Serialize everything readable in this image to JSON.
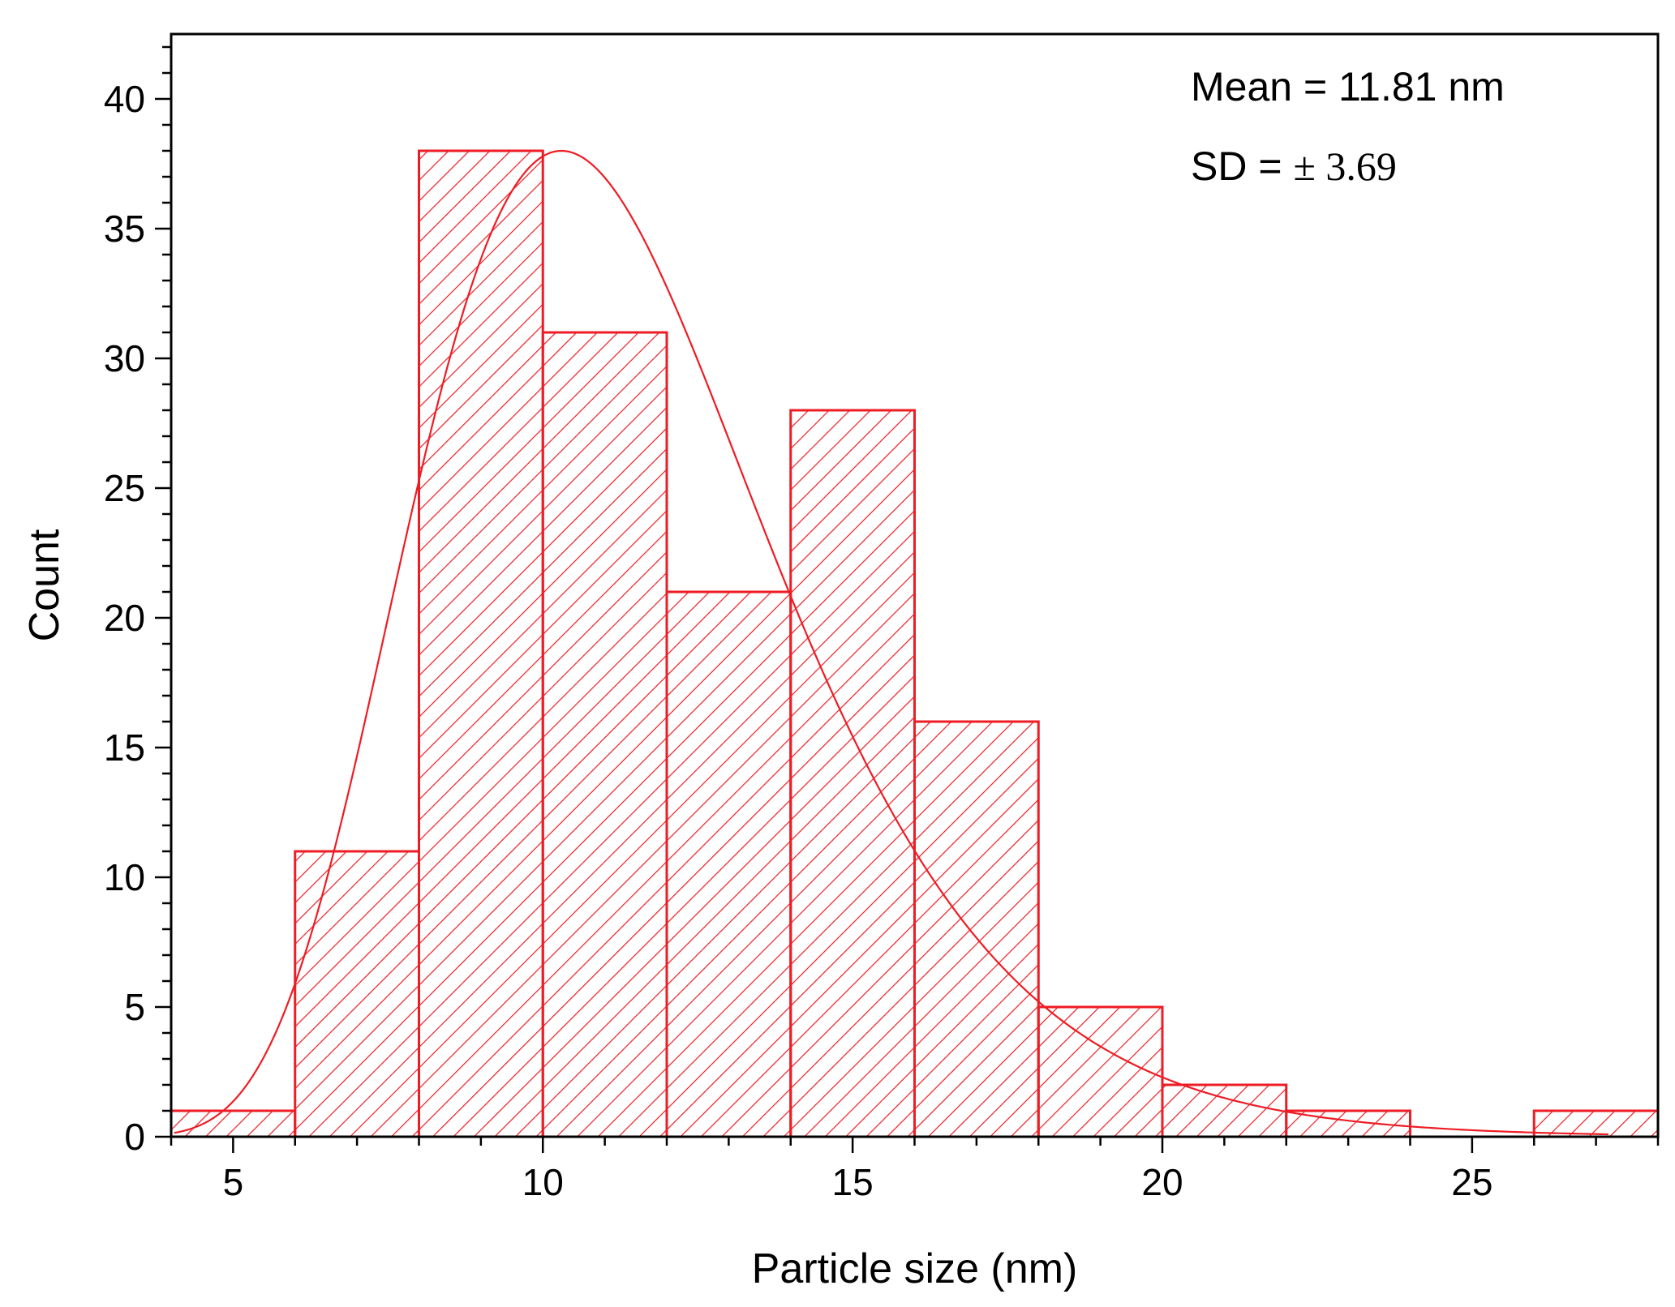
{
  "chart_data": {
    "type": "bar",
    "histogram": true,
    "bins": [
      {
        "start": 4,
        "end": 6,
        "count": 1
      },
      {
        "start": 6,
        "end": 8,
        "count": 11
      },
      {
        "start": 8,
        "end": 10,
        "count": 38
      },
      {
        "start": 10,
        "end": 12,
        "count": 31
      },
      {
        "start": 12,
        "end": 14,
        "count": 21
      },
      {
        "start": 14,
        "end": 16,
        "count": 28
      },
      {
        "start": 16,
        "end": 18,
        "count": 16
      },
      {
        "start": 18,
        "end": 20,
        "count": 5
      },
      {
        "start": 20,
        "end": 22,
        "count": 2
      },
      {
        "start": 22,
        "end": 24,
        "count": 1
      },
      {
        "start": 24,
        "end": 26,
        "count": 0
      },
      {
        "start": 26,
        "end": 28,
        "count": 1
      }
    ],
    "fit_curve": {
      "type": "lognormal",
      "peak_x": 10.3,
      "peak_y": 38,
      "sigma": 0.28
    },
    "xlabel": "Particle size (nm)",
    "ylabel": "Count",
    "xlim": [
      4,
      28
    ],
    "ylim": [
      0,
      42.5
    ],
    "xticks": [
      5,
      10,
      15,
      20,
      25
    ],
    "yticks": [
      0,
      5,
      10,
      15,
      20,
      25,
      30,
      35,
      40
    ],
    "grid": false,
    "bar_color": "#ee1c24",
    "fill_pattern": "diagonal-hatch",
    "annotations": {
      "mean_label": "Mean = 11.81 nm",
      "sd_prefix": "SD = ",
      "sd_value": "± 3.69"
    }
  }
}
